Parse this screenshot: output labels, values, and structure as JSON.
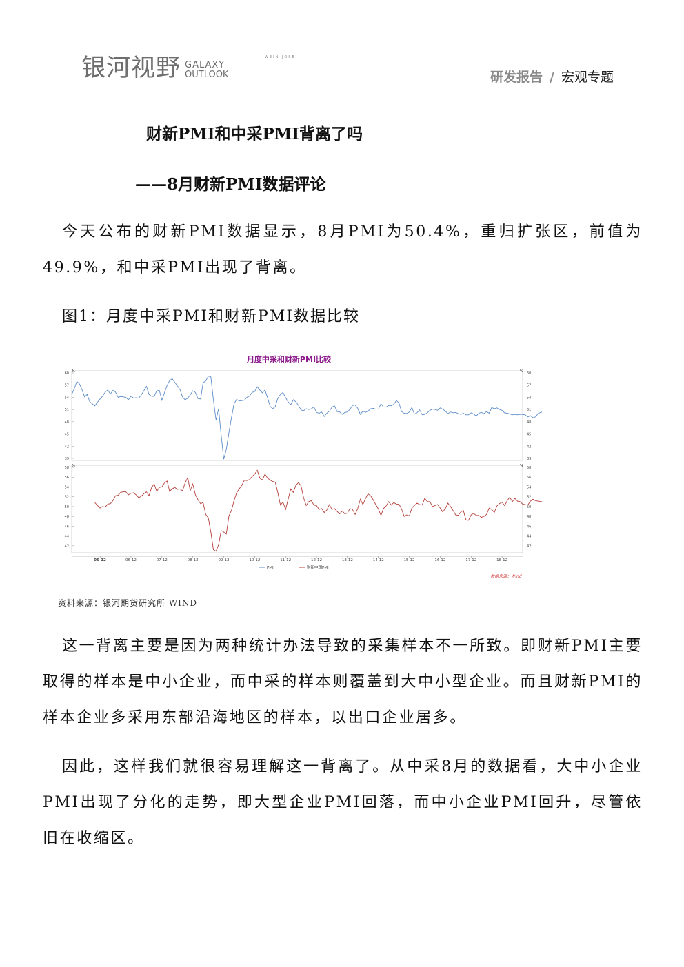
{
  "header": {
    "logo_cn": "银河视野",
    "logo_en_line1": "GALAXY",
    "logo_en_line2": "OUTLOOK",
    "logo_tiny": "WEIN JOSE",
    "report_type": "研发报告",
    "separator": "/",
    "topic": "宏观专题"
  },
  "article": {
    "title": "财新PMI和中采PMI背离了吗",
    "subtitle": "——8月财新PMI数据评论",
    "para1": "今天公布的财新PMI数据显示，8月PMI为50.4%，重归扩张区，前值为49.9%，和中采PMI出现了背离。",
    "figure_title": "图1：月度中采PMI和财新PMI数据比较",
    "source": "资料来源：银河期货研究所 WIND",
    "para2": "这一背离主要是因为两种统计办法导致的采集样本不一所致。即财新PMI主要取得的样本是中小企业，而中采的样本则覆盖到大中小型企业。而且财新PMI的样本企业多采用东部沿海地区的样本，以出口企业居多。",
    "para3": "因此，这样我们就很容易理解这一背离了。从中采8月的数据看，大中小企业PMI出现了分化的走势，即大型企业PMI回落，而中小企业PMI回升，尽管依旧在收缩区。"
  },
  "chart_data": {
    "type": "line",
    "title": "月度中采和财新PMI比较",
    "title_color": "#8b1a8b",
    "source_note": "数据来源：Wind",
    "x_tick_labels": [
      "05-12",
      "06-12",
      "07-12",
      "08-12",
      "09-12",
      "10-12",
      "11-12",
      "12-12",
      "13-12",
      "14-12",
      "15-12",
      "16-12",
      "17-12",
      "18-12"
    ],
    "x_range": [
      "2005-01",
      "2019-08"
    ],
    "panels": [
      {
        "series_name": "PMI",
        "color": "#5b8cc9",
        "unit": "%",
        "ylim": [
          39,
          60
        ],
        "yticks": [
          39,
          42,
          45,
          48,
          51,
          54,
          57,
          60
        ],
        "x_start": "2005-01",
        "values": [
          54.7,
          56.1,
          57.9,
          57.3,
          55.9,
          54.1,
          54.7,
          52.9,
          52.4,
          51.9,
          52.8,
          53.6,
          54.3,
          55.3,
          55.8,
          54.8,
          55.7,
          55.3,
          54.0,
          54.2,
          54.1,
          54.0,
          53.4,
          54.3,
          53.8,
          53.9,
          53.8,
          54.6,
          55.6,
          56.7,
          54.7,
          54.3,
          54.2,
          55.6,
          55.7,
          53.3,
          55.1,
          56.9,
          58.1,
          58.6,
          57.7,
          56.8,
          55.9,
          54.1,
          53.4,
          53.8,
          54.6,
          55.6,
          55.2,
          53.7,
          53.6,
          57.6,
          58.0,
          59.2,
          59.0,
          53.4,
          48.4,
          51.2,
          44.6,
          38.8,
          41.2,
          45.3,
          49.0,
          52.4,
          53.5,
          53.1,
          53.2,
          53.3,
          54.0,
          54.3,
          55.2,
          55.4,
          56.6,
          55.8,
          55.1,
          55.8,
          53.9,
          51.8,
          51.2,
          51.7,
          53.8,
          54.7,
          55.2,
          53.9,
          52.9,
          52.2,
          53.4,
          52.9,
          52.0,
          50.9,
          50.7,
          51.2,
          51.0,
          51.2,
          51.6,
          50.3,
          50.1,
          50.4,
          49.3,
          50.1,
          50.6,
          51.6,
          51.9,
          50.5,
          50.4,
          49.8,
          50.3,
          50.4,
          51.1,
          52.0,
          52.1,
          51.3,
          49.8,
          50.6,
          50.3,
          50.6,
          51.2,
          51.3,
          51.1,
          51.1,
          52.4,
          51.6,
          51.6,
          52.0,
          51.9,
          52.3,
          53.2,
          52.6,
          50.5,
          50.1,
          50.0,
          50.4,
          51.5,
          49.9,
          50.2,
          50.9,
          49.7,
          49.8,
          50.2,
          50.8,
          51.1,
          51.0,
          50.8,
          51.4,
          51.1,
          50.6,
          50.0,
          50.4,
          50.2,
          50.3,
          50.0,
          49.8,
          50.1,
          49.7,
          49.7,
          50.2,
          49.9,
          49.4,
          50.1,
          50.3,
          50.0,
          50.5,
          50.1,
          51.5,
          51.2,
          51.4,
          51.0,
          50.8,
          50.2,
          50.1,
          49.9,
          49.7,
          49.8,
          49.7,
          49.8,
          49.8,
          49.7,
          49.2,
          49.5,
          49.0,
          49.2,
          50.0,
          50.3,
          50.5,
          50.8,
          51.4,
          51.5,
          51.0,
          51.2,
          51.5,
          51.0,
          51.1,
          52.2,
          51.6,
          51.3,
          51.4,
          51.2,
          51.8,
          51.3,
          51.1,
          50.8,
          51.6,
          51.5,
          51.3,
          50.5,
          51.0,
          51.7,
          51.5,
          51.1,
          50.8,
          50.2,
          50.0,
          49.2,
          49.5,
          49.2,
          50.5,
          50.1,
          49.4,
          49.5,
          49.7,
          49.5
        ],
        "value_labels": null
      },
      {
        "series_name": "财新中国PMI",
        "color": "#b5403a",
        "unit": "%",
        "ylim": [
          41,
          58
        ],
        "yticks": [
          42,
          44,
          46,
          48,
          50,
          52,
          54,
          56,
          58
        ],
        "x_start": "2005-10",
        "values": [
          50.8,
          50.2,
          49.7,
          50.0,
          49.9,
          50.5,
          50.6,
          51.2,
          52.2,
          52.3,
          52.9,
          53.0,
          53.0,
          52.4,
          52.7,
          52.8,
          52.4,
          51.8,
          52.1,
          52.6,
          53.0,
          52.2,
          53.9,
          54.6,
          53.1,
          53.9,
          54.0,
          54.8,
          55.2,
          53.1,
          53.6,
          53.9,
          53.5,
          53.6,
          53.2,
          54.8,
          55.9,
          53.3,
          54.6,
          52.4,
          51.4,
          50.6,
          50.8,
          48.4,
          47.7,
          44.8,
          41.2,
          40.9,
          42.2,
          45.1,
          44.8,
          44.4,
          48.1,
          49.2,
          51.2,
          52.8,
          53.6,
          54.3,
          55.4,
          55.3,
          55.5,
          56.1,
          56.6,
          57.4,
          55.8,
          55.4,
          56.6,
          55.8,
          55.4,
          55.1,
          55.0,
          52.8,
          50.3,
          50.9,
          49.4,
          51.5,
          53.6,
          52.9,
          54.3,
          54.9,
          54.2,
          51.8,
          50.2,
          51.0,
          51.2,
          50.3,
          50.2,
          49.4,
          49.6,
          48.8,
          49.3,
          50.4,
          49.4,
          49.6,
          49.0,
          48.5,
          49.1,
          48.5,
          48.7,
          49.6,
          49.4,
          48.4,
          49.6,
          51.5,
          50.4,
          51.6,
          52.6,
          52.2,
          51.4,
          50.4,
          49.5,
          48.2,
          49.6,
          50.1,
          51.0,
          50.3,
          50.8,
          50.5,
          50.5,
          49.5,
          48.0,
          48.3,
          48.1,
          49.7,
          50.2,
          50.7,
          50.4,
          50.3,
          51.7,
          51.0,
          51.0,
          50.0,
          50.2,
          50.4,
          49.7,
          48.9,
          49.6,
          50.7,
          50.0,
          49.2,
          48.3,
          48.2,
          48.9,
          49.2,
          47.3,
          47.2,
          48.3,
          48.6,
          48.2,
          48.2,
          47.8,
          48.0,
          48.4,
          49.7,
          49.4,
          48.8,
          50.1,
          50.6,
          50.9,
          50.2,
          51.2,
          51.9,
          51.0,
          51.7,
          51.1,
          51.0,
          50.5,
          50.4,
          50.3,
          51.1,
          51.5,
          51.2,
          51.1,
          51.0,
          51.0,
          50.8,
          50.8,
          50.6,
          50.1,
          50.1,
          50.4,
          50.0,
          49.8,
          49.7,
          48.3,
          50.2,
          50.8,
          50.5,
          50.2,
          49.4,
          49.9,
          50.4
        ]
      }
    ],
    "legend": {
      "placement": "bottom-center",
      "entries": [
        "PMI",
        "财新中国PMI"
      ]
    },
    "grid": false
  }
}
